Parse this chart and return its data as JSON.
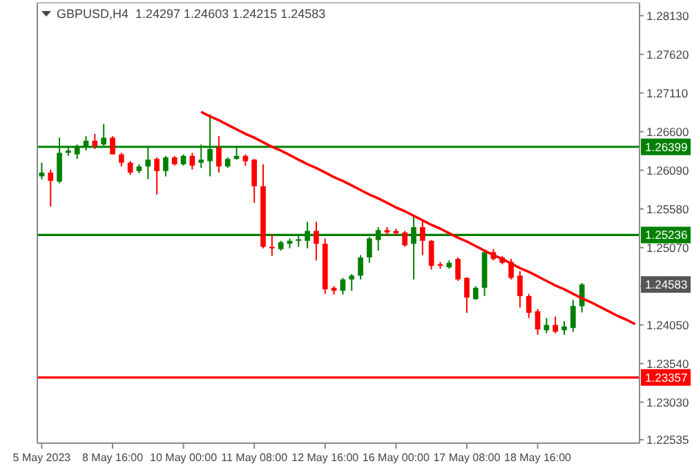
{
  "chart_data": {
    "type": "candlestick",
    "title": "GBPUSD,H4  1.24297 1.24603 1.24215 1.24583",
    "categories": [
      "5 May 2023",
      null,
      null,
      null,
      null,
      null,
      null,
      null,
      "8 May 16:00",
      null,
      null,
      null,
      null,
      null,
      null,
      null,
      "10 May 00:00",
      null,
      null,
      null,
      null,
      null,
      null,
      null,
      "11 May 08:00",
      null,
      null,
      null,
      null,
      null,
      null,
      null,
      "12 May 16:00",
      null,
      null,
      null,
      null,
      null,
      null,
      null,
      "16 May 00:00",
      null,
      null,
      null,
      null,
      null,
      null,
      null,
      "17 May 08:00",
      null,
      null,
      null,
      null,
      null,
      null,
      null,
      "18 May 16:00",
      null,
      null,
      null,
      null,
      null,
      null,
      null,
      null,
      null,
      null,
      null
    ],
    "ohlc": [
      [
        1.2601,
        1.2619,
        1.2597,
        1.2606
      ],
      [
        1.2606,
        1.261,
        1.2561,
        1.2595
      ],
      [
        1.2594,
        1.2652,
        1.2592,
        1.2632
      ],
      [
        1.2632,
        1.2641,
        1.2628,
        1.2635
      ],
      [
        1.263,
        1.2643,
        1.2624,
        1.2641
      ],
      [
        1.2639,
        1.2654,
        1.2635,
        1.2648
      ],
      [
        1.2648,
        1.2657,
        1.2637,
        1.2641
      ],
      [
        1.2643,
        1.267,
        1.2641,
        1.2652
      ],
      [
        1.2652,
        1.2654,
        1.263,
        1.263
      ],
      [
        1.263,
        1.2632,
        1.2614,
        1.2619
      ],
      [
        1.2619,
        1.2621,
        1.2603,
        1.2606
      ],
      [
        1.2608,
        1.2617,
        1.2605,
        1.2614
      ],
      [
        1.2614,
        1.2641,
        1.2597,
        1.2623
      ],
      [
        1.2624,
        1.2626,
        1.2577,
        1.2608
      ],
      [
        1.2608,
        1.2628,
        1.2601,
        1.2626
      ],
      [
        1.2626,
        1.2628,
        1.2615,
        1.2617
      ],
      [
        1.2617,
        1.263,
        1.2615,
        1.2628
      ],
      [
        1.2628,
        1.2632,
        1.261,
        1.2615
      ],
      [
        1.2619,
        1.2643,
        1.2612,
        1.2623
      ],
      [
        1.2621,
        1.2683,
        1.2601,
        1.2637
      ],
      [
        1.2639,
        1.2654,
        1.2606,
        1.2614
      ],
      [
        1.2614,
        1.2626,
        1.2612,
        1.2624
      ],
      [
        1.2624,
        1.2641,
        1.2623,
        1.2628
      ],
      [
        1.2628,
        1.263,
        1.2615,
        1.2621
      ],
      [
        1.2623,
        1.2624,
        1.2566,
        1.2588
      ],
      [
        1.2588,
        1.2617,
        1.2506,
        1.2508
      ],
      [
        1.2508,
        1.2525,
        1.2496,
        1.2506
      ],
      [
        1.2505,
        1.2516,
        1.2503,
        1.2514
      ],
      [
        1.2512,
        1.2519,
        1.2506,
        1.2516
      ],
      [
        1.2516,
        1.2525,
        1.2508,
        1.2518
      ],
      [
        1.2516,
        1.2541,
        1.2506,
        1.2529
      ],
      [
        1.2529,
        1.2541,
        1.249,
        1.2512
      ],
      [
        1.2512,
        1.2519,
        1.2446,
        1.2452
      ],
      [
        1.2454,
        1.2456,
        1.2445,
        1.245
      ],
      [
        1.245,
        1.2467,
        1.2445,
        1.2465
      ],
      [
        1.2465,
        1.2472,
        1.245,
        1.247
      ],
      [
        1.247,
        1.2497,
        1.2465,
        1.2494
      ],
      [
        1.2494,
        1.2521,
        1.2487,
        1.2519
      ],
      [
        1.2517,
        1.2534,
        1.2503,
        1.253
      ],
      [
        1.253,
        1.2534,
        1.2523,
        1.2527
      ],
      [
        1.2529,
        1.2532,
        1.2523,
        1.2526
      ],
      [
        1.2527,
        1.2529,
        1.2508,
        1.251
      ],
      [
        1.2512,
        1.2548,
        1.2465,
        1.2534
      ],
      [
        1.2534,
        1.2543,
        1.2497,
        1.2516
      ],
      [
        1.2516,
        1.2517,
        1.2478,
        1.2483
      ],
      [
        1.2485,
        1.2488,
        1.2479,
        1.2483
      ],
      [
        1.2481,
        1.249,
        1.2479,
        1.2487
      ],
      [
        1.2492,
        1.2494,
        1.2463,
        1.2465
      ],
      [
        1.2467,
        1.2468,
        1.2421,
        1.2441
      ],
      [
        1.2439,
        1.2456,
        1.2438,
        1.2454
      ],
      [
        1.2454,
        1.2503,
        1.2443,
        1.2501
      ],
      [
        1.2501,
        1.2505,
        1.249,
        1.2492
      ],
      [
        1.2494,
        1.2496,
        1.2485,
        1.2487
      ],
      [
        1.2488,
        1.2492,
        1.2465,
        1.2467
      ],
      [
        1.247,
        1.2476,
        1.2428,
        1.2443
      ],
      [
        1.2443,
        1.2446,
        1.2414,
        1.2421
      ],
      [
        1.2423,
        1.2426,
        1.2392,
        1.2399
      ],
      [
        1.2398,
        1.2414,
        1.2394,
        1.2405
      ],
      [
        1.2405,
        1.2416,
        1.2394,
        1.2396
      ],
      [
        1.2398,
        1.241,
        1.2392,
        1.2403
      ],
      [
        1.2401,
        1.2438,
        1.2396,
        1.243
      ],
      [
        1.24297,
        1.24603,
        1.24215,
        1.24583
      ],
      null,
      null,
      null,
      null,
      null,
      null
    ],
    "colors": [
      "#008000",
      "#ff0000",
      "#008000",
      "#008000",
      "#008000",
      "#008000",
      "#ff0000",
      "#008000",
      "#ff0000",
      "#ff0000",
      "#ff0000",
      "#008000",
      "#008000",
      "#ff0000",
      "#008000",
      "#ff0000",
      "#008000",
      "#ff0000",
      "#008000",
      "#008000",
      "#ff0000",
      "#008000",
      "#008000",
      "#ff0000",
      "#ff0000",
      "#ff0000",
      "#ff0000",
      "#008000",
      "#008000",
      "#008000",
      "#008000",
      "#ff0000",
      "#ff0000",
      "#ff0000",
      "#008000",
      "#008000",
      "#008000",
      "#008000",
      "#008000",
      "#ff0000",
      "#ff0000",
      "#ff0000",
      "#008000",
      "#ff0000",
      "#ff0000",
      "#ff0000",
      "#008000",
      "#ff0000",
      "#ff0000",
      "#008000",
      "#008000",
      "#ff0000",
      "#ff0000",
      "#ff0000",
      "#ff0000",
      "#ff0000",
      "#ff0000",
      "#008000",
      "#ff0000",
      "#008000",
      "#008000",
      "#008000",
      null,
      null,
      null,
      null,
      null,
      null
    ],
    "series": [
      {
        "type": "line",
        "color": "#ff0000",
        "values": [
          null,
          null,
          null,
          null,
          null,
          null,
          null,
          null,
          null,
          null,
          null,
          null,
          null,
          null,
          null,
          null,
          null,
          null,
          1.2686,
          1.268,
          1.2675,
          1.2669,
          1.2663,
          1.2657,
          1.2652,
          1.2646,
          1.264,
          1.2635,
          1.2629,
          1.2623,
          1.2617,
          1.2612,
          1.2606,
          1.26,
          1.2595,
          1.2589,
          1.2583,
          1.2577,
          1.2572,
          1.2566,
          1.256,
          1.2555,
          1.2549,
          1.2543,
          1.2537,
          1.2532,
          1.2526,
          1.252,
          1.2515,
          1.2509,
          1.2503,
          1.2497,
          1.2492,
          1.2486,
          1.248,
          1.2475,
          1.2469,
          1.2463,
          1.2457,
          1.2452,
          1.2446,
          1.244,
          1.2435,
          1.2429,
          1.2423,
          1.2417,
          1.2412,
          1.2406
        ]
      }
    ],
    "ylim": [
      1.2249,
      1.283
    ],
    "yticks": [
      {
        "value": 1.2813,
        "label": "1.28130"
      },
      {
        "value": 1.2762,
        "label": "1.27620"
      },
      {
        "value": 1.2711,
        "label": "1.27110"
      },
      {
        "value": 1.266,
        "label": "1.26600"
      },
      {
        "value": 1.2609,
        "label": "1.26090"
      },
      {
        "value": 1.2558,
        "label": "1.25580"
      },
      {
        "value": 1.2507,
        "label": "1.25070"
      },
      {
        "value": 1.2456,
        "label": null
      },
      {
        "value": 1.2405,
        "label": "1.24050"
      },
      {
        "value": 1.2354,
        "label": "1.23540"
      },
      {
        "value": 1.2303,
        "label": "1.23030"
      },
      {
        "value": 1.22535,
        "label": "1.22535"
      }
    ],
    "ref_lines": [
      {
        "axis": "y",
        "value": 1.26399,
        "label": "1.26399",
        "color": "#008000"
      },
      {
        "axis": "y",
        "value": 1.25236,
        "label": "1.25236",
        "color": "#008000"
      },
      {
        "axis": "y",
        "value": 1.23357,
        "label": "1.23357",
        "color": "#ff0000"
      }
    ],
    "annotations": [
      {
        "text": "1.24583",
        "y": 1.24583
      }
    ],
    "grid": false
  }
}
